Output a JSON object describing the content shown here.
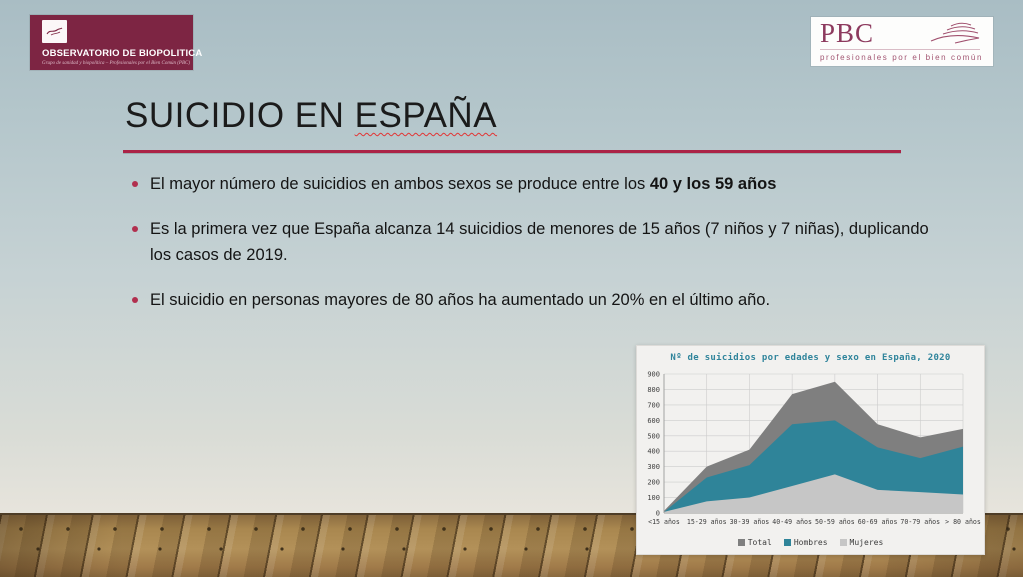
{
  "slide": {
    "title": {
      "prefix": "SUICIDIO EN ",
      "underlined": "ESPAÑA"
    },
    "bullets": [
      {
        "segments": [
          {
            "t": "El mayor número de suicidios en ambos sexos se produce entre los ",
            "b": false
          },
          {
            "t": "40 y los 59 años",
            "b": true
          }
        ]
      },
      {
        "segments": [
          {
            "t": "Es la primera vez que España alcanza 14 suicidios de menores de 15 años (7 niños y 7 niñas), duplicando los casos de 2019.",
            "b": false
          }
        ]
      },
      {
        "segments": [
          {
            "t": "El suicidio en personas mayores de 80 años ha aumentado un 20% en el último año.",
            "b": false
          }
        ]
      }
    ]
  },
  "logos": {
    "observatorio": {
      "title": "OBSERVATORIO DE BIOPOLITICA",
      "subtitle": "Grupo de sanidad y biopolítica  –  Profesionales por el Bien Común (PBC)",
      "bg_color": "#7d2543"
    },
    "pbc": {
      "acronym": "PBC",
      "tagline": "profesionales por el bien común",
      "color": "#8d3a5e"
    }
  },
  "chart_data": {
    "type": "area",
    "title": "Nº de suicidios por edades y sexo en España, 2020",
    "title_color": "#2f849b",
    "categories": [
      "<15 años",
      "15-29 años",
      "30-39 años",
      "40-49 años",
      "50-59 años",
      "60-69 años",
      "70-79 años",
      "> 80 años"
    ],
    "series": [
      {
        "name": "Total",
        "color": "#7f7f7f",
        "values": [
          14,
          300,
          410,
          770,
          850,
          575,
          490,
          545
        ]
      },
      {
        "name": "Hombres",
        "color": "#2f8499",
        "values": [
          7,
          230,
          310,
          575,
          600,
          425,
          355,
          430
        ]
      },
      {
        "name": "Mujeres",
        "color": "#c6c6c6",
        "values": [
          7,
          75,
          100,
          175,
          250,
          150,
          135,
          120
        ]
      }
    ],
    "xlabel": "",
    "ylabel": "",
    "ylim": [
      0,
      900
    ],
    "ytick": 100,
    "grid": true,
    "legend_position": "bottom"
  },
  "colors": {
    "divider": "#ab2346",
    "bullet_dot": "#b12f4e"
  }
}
